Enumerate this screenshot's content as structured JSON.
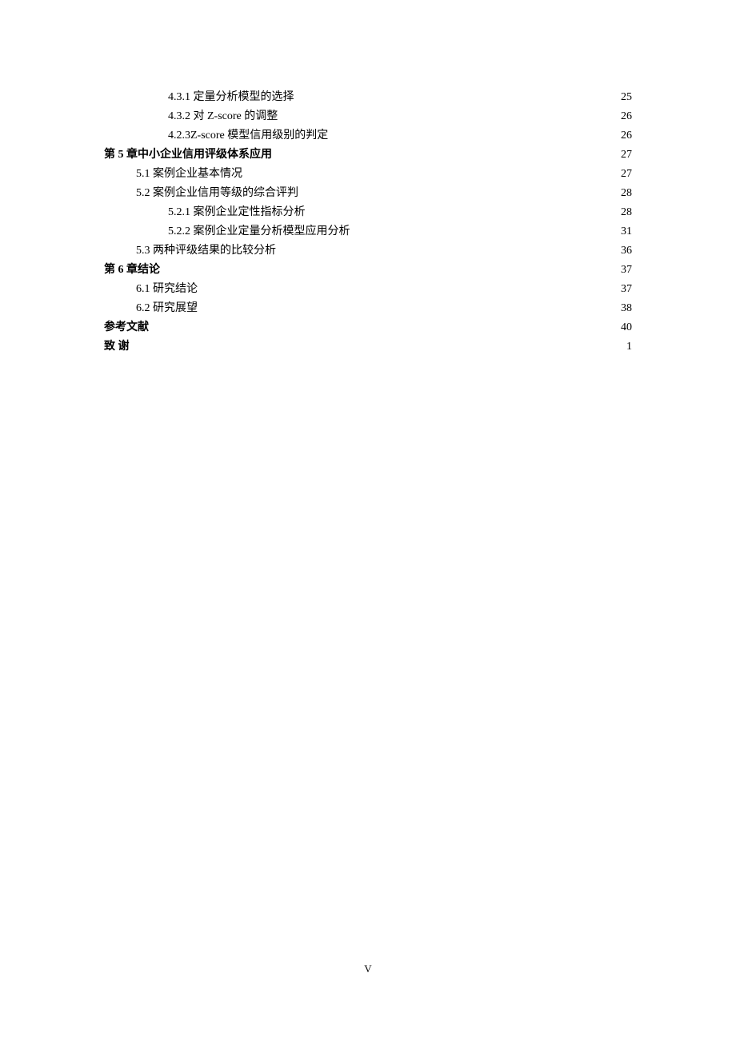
{
  "toc": {
    "entries": [
      {
        "level": 3,
        "label": "4.3.1 定量分析模型的选择",
        "page": "25"
      },
      {
        "level": 3,
        "label": "4.3.2 对 Z-score 的调整",
        "page": "26"
      },
      {
        "level": 3,
        "label": "4.2.3Z-score 模型信用级别的判定",
        "page": "26"
      },
      {
        "level": 1,
        "label": "第 5 章中小企业信用评级体系应用",
        "page": "27"
      },
      {
        "level": 2,
        "label": "5.1 案例企业基本情况",
        "page": "27"
      },
      {
        "level": 2,
        "label": "5.2 案例企业信用等级的综合评判",
        "page": "28"
      },
      {
        "level": 3,
        "label": "5.2.1 案例企业定性指标分析",
        "page": "28"
      },
      {
        "level": 3,
        "label": "5.2.2 案例企业定量分析模型应用分析",
        "page": "31"
      },
      {
        "level": 2,
        "label": "5.3 两种评级结果的比较分析",
        "page": "36"
      },
      {
        "level": 1,
        "label": "第 6 章结论",
        "page": "37"
      },
      {
        "level": 2,
        "label": "6.1 研究结论",
        "page": "37"
      },
      {
        "level": 2,
        "label": "6.2 研究展望",
        "page": "38"
      },
      {
        "level": 1,
        "label": "参考文献",
        "page": "40"
      },
      {
        "level": 1,
        "label": "致  谢",
        "page": "1"
      }
    ]
  },
  "footer": {
    "page_number": "V"
  }
}
